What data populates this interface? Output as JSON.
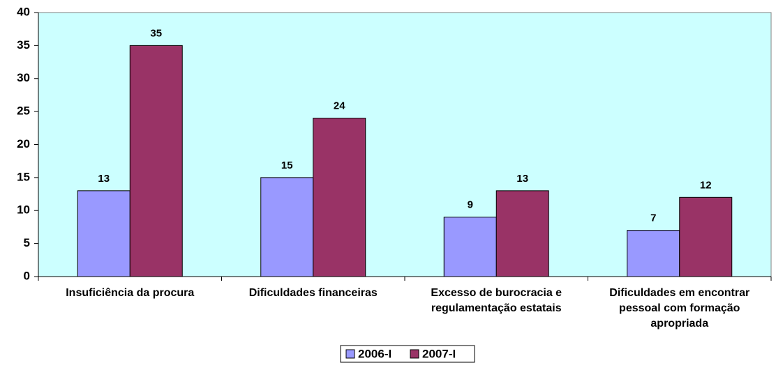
{
  "chart_data": {
    "type": "bar",
    "categories": [
      "Insuficiência da procura",
      "Dificuldades financeiras",
      "Excesso de burocracia e regulamentação estatais",
      "Dificuldades em encontrar pessoal com formação apropriada"
    ],
    "series": [
      {
        "name": "2006-I",
        "color": "#9999ff",
        "values": [
          13,
          15,
          9,
          7
        ]
      },
      {
        "name": "2007-I",
        "color": "#993366",
        "values": [
          35,
          24,
          13,
          12
        ]
      }
    ],
    "ylim": [
      0,
      40
    ],
    "yticks": [
      0,
      5,
      10,
      15,
      20,
      25,
      30,
      35,
      40
    ],
    "background": "#ccffff",
    "legend": "bottom"
  }
}
